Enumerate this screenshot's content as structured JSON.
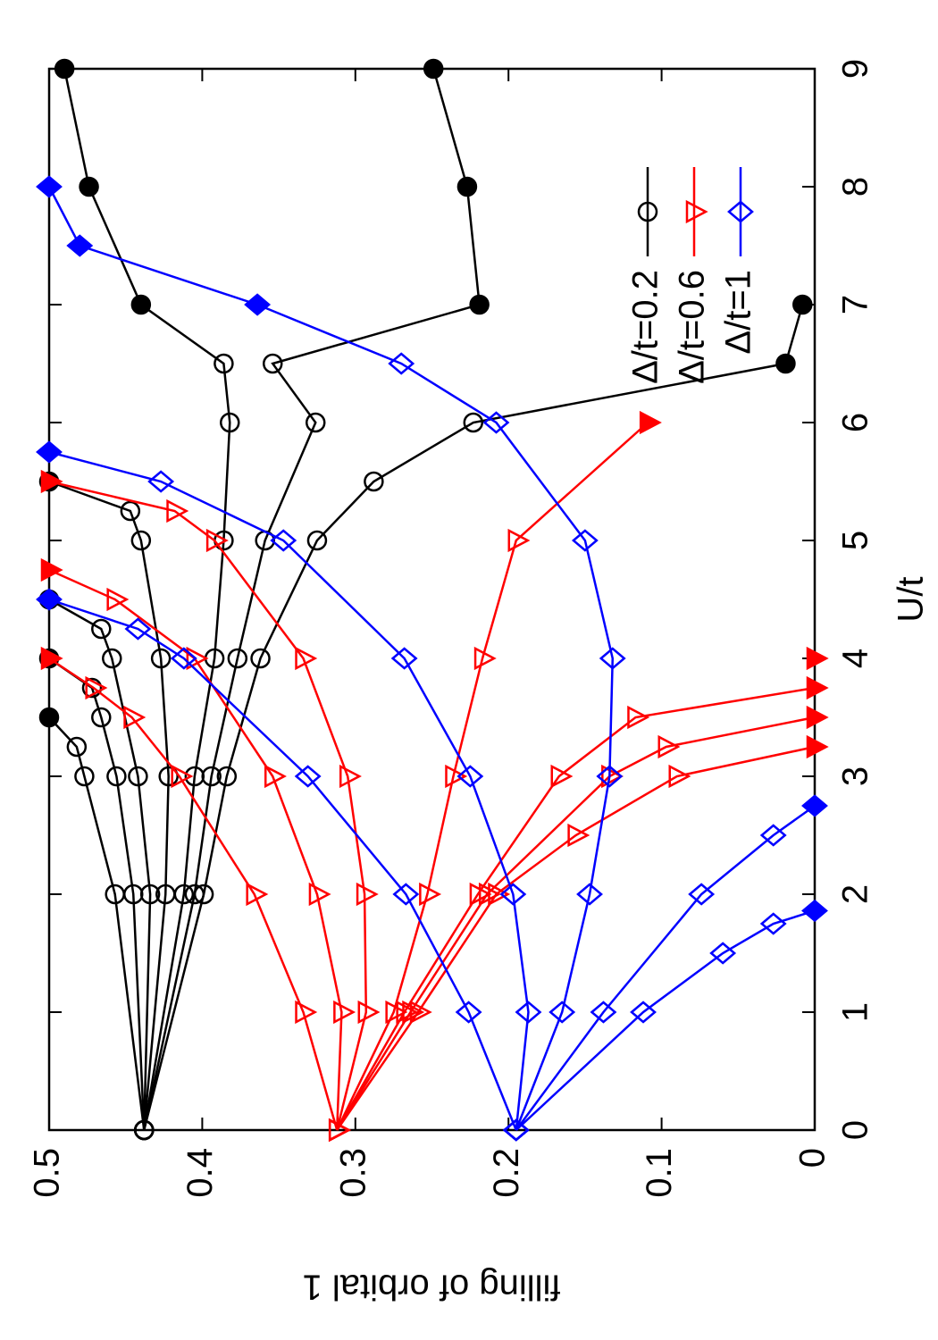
{
  "chart_data": {
    "type": "line",
    "xlabel": "U/t",
    "ylabel": "filling of orbital 1",
    "xlim": [
      0,
      9
    ],
    "ylim": [
      0,
      0.5
    ],
    "xticks": [
      0,
      1,
      2,
      3,
      4,
      5,
      6,
      7,
      8,
      9
    ],
    "yticks": [
      0,
      0.1,
      0.2,
      0.3,
      0.4,
      0.5
    ],
    "legend": "top right",
    "series": [
      {
        "name": "Δ/t=0.2",
        "color": "#000000",
        "marker": "circle",
        "curves": [
          {
            "x": [
              0,
              2,
              3,
              3.25,
              3.5
            ],
            "values": [
              0.438,
              0.457,
              0.477,
              0.482,
              0.5
            ],
            "filled": [
              false,
              false,
              false,
              false,
              true
            ]
          },
          {
            "x": [
              0,
              2,
              3,
              3.5,
              3.75,
              4
            ],
            "values": [
              0.438,
              0.445,
              0.456,
              0.466,
              0.472,
              0.5
            ],
            "filled": [
              false,
              false,
              false,
              false,
              false,
              true
            ]
          },
          {
            "x": [
              0,
              2,
              3,
              4,
              4.25,
              4.5
            ],
            "values": [
              0.438,
              0.434,
              0.442,
              0.459,
              0.466,
              0.5
            ],
            "filled": [
              false,
              false,
              false,
              false,
              false,
              true
            ]
          },
          {
            "x": [
              0,
              2,
              3,
              4,
              5,
              5.25,
              5.5
            ],
            "values": [
              0.438,
              0.424,
              0.422,
              0.427,
              0.44,
              0.447,
              0.5
            ],
            "filled": [
              false,
              false,
              false,
              false,
              false,
              false,
              true
            ]
          },
          {
            "x": [
              0,
              2,
              3,
              4,
              5,
              6,
              6.5,
              7,
              8,
              9
            ],
            "values": [
              0.438,
              0.412,
              0.405,
              0.392,
              0.386,
              0.382,
              0.386,
              0.44,
              0.474,
              0.49
            ],
            "filled": [
              false,
              false,
              false,
              false,
              false,
              false,
              false,
              true,
              true,
              true
            ]
          },
          {
            "x": [
              0,
              2,
              3,
              4,
              5,
              6,
              6.5,
              7,
              8,
              9
            ],
            "values": [
              0.438,
              0.405,
              0.394,
              0.377,
              0.359,
              0.326,
              0.354,
              0.219,
              0.227,
              0.249
            ],
            "filled": [
              false,
              false,
              false,
              false,
              false,
              false,
              false,
              true,
              true,
              true
            ]
          },
          {
            "x": [
              0,
              2,
              3,
              4,
              5,
              5.5,
              6,
              6.5,
              7
            ],
            "values": [
              0.438,
              0.399,
              0.384,
              0.362,
              0.325,
              0.288,
              0.223,
              0.019,
              0.008
            ],
            "filled": [
              false,
              false,
              false,
              false,
              false,
              false,
              false,
              true,
              true
            ]
          }
        ]
      },
      {
        "name": "Δ/t=0.6",
        "color": "#ff0000",
        "marker": "triangle",
        "curves": [
          {
            "x": [
              0,
              1,
              2,
              3,
              3.5,
              3.75,
              4
            ],
            "values": [
              0.312,
              0.334,
              0.366,
              0.415,
              0.446,
              0.471,
              0.5
            ],
            "filled": [
              false,
              false,
              false,
              false,
              false,
              false,
              true
            ]
          },
          {
            "x": [
              0,
              1,
              2,
              3,
              4,
              4.5,
              4.75
            ],
            "values": [
              0.312,
              0.309,
              0.325,
              0.354,
              0.405,
              0.457,
              0.5
            ],
            "filled": [
              false,
              false,
              false,
              false,
              false,
              false,
              true
            ]
          },
          {
            "x": [
              0,
              1,
              2,
              3,
              4,
              5,
              5.25,
              5.5
            ],
            "values": [
              0.312,
              0.293,
              0.294,
              0.305,
              0.334,
              0.392,
              0.418,
              0.5
            ],
            "filled": [
              false,
              false,
              false,
              false,
              false,
              false,
              false,
              true
            ]
          },
          {
            "x": [
              0,
              1,
              2,
              3,
              4,
              5,
              6
            ],
            "values": [
              0.312,
              0.275,
              0.253,
              0.236,
              0.217,
              0.195,
              0.109
            ],
            "filled": [
              false,
              false,
              false,
              false,
              false,
              false,
              true
            ]
          },
          {
            "x": [
              0,
              1,
              2,
              3,
              3.5,
              3.75
            ],
            "values": [
              0.312,
              0.268,
              0.22,
              0.167,
              0.117,
              0
            ],
            "filled": [
              false,
              false,
              false,
              false,
              false,
              true
            ]
          },
          {
            "x": [
              0,
              1,
              2,
              3,
              3.25,
              3.5
            ],
            "values": [
              0.312,
              0.264,
              0.214,
              0.134,
              0.097,
              0
            ],
            "filled": [
              false,
              false,
              false,
              false,
              false,
              true
            ]
          },
          {
            "x": [
              0,
              1,
              2,
              2.5,
              3,
              3.25
            ],
            "values": [
              0.312,
              0.259,
              0.208,
              0.156,
              0.09,
              0
            ],
            "filled": [
              false,
              false,
              false,
              false,
              false,
              true
            ]
          },
          {
            "x": [
              4
            ],
            "values": [
              0
            ],
            "filled": [
              true
            ]
          }
        ]
      },
      {
        "name": "Δ/t=1",
        "color": "#0000ff",
        "marker": "diamond",
        "curves": [
          {
            "x": [
              0,
              1,
              2,
              3,
              4,
              4.25,
              4.5
            ],
            "values": [
              0.195,
              0.226,
              0.267,
              0.331,
              0.412,
              0.442,
              0.5
            ],
            "filled": [
              false,
              false,
              false,
              false,
              false,
              false,
              true
            ]
          },
          {
            "x": [
              0,
              1,
              2,
              3,
              4,
              5,
              5.5,
              5.75
            ],
            "values": [
              0.195,
              0.187,
              0.197,
              0.225,
              0.268,
              0.347,
              0.427,
              0.5
            ],
            "filled": [
              false,
              false,
              false,
              false,
              false,
              false,
              false,
              true
            ]
          },
          {
            "x": [
              0,
              1,
              2,
              3,
              4,
              5,
              6,
              6.5,
              7,
              7.5,
              8
            ],
            "values": [
              0.195,
              0.165,
              0.147,
              0.134,
              0.132,
              0.15,
              0.208,
              0.27,
              0.364,
              0.48,
              0.5
            ],
            "filled": [
              false,
              false,
              false,
              false,
              false,
              false,
              false,
              false,
              true,
              true,
              true
            ]
          },
          {
            "x": [
              0,
              1,
              2,
              2.5,
              2.75
            ],
            "values": [
              0.195,
              0.138,
              0.074,
              0.027,
              0
            ],
            "filled": [
              false,
              false,
              false,
              false,
              true
            ]
          },
          {
            "x": [
              0,
              1,
              1.5,
              1.75,
              1.86
            ],
            "values": [
              0.195,
              0.112,
              0.06,
              0.027,
              0
            ],
            "filled": [
              false,
              false,
              false,
              false,
              true
            ]
          }
        ]
      }
    ]
  }
}
